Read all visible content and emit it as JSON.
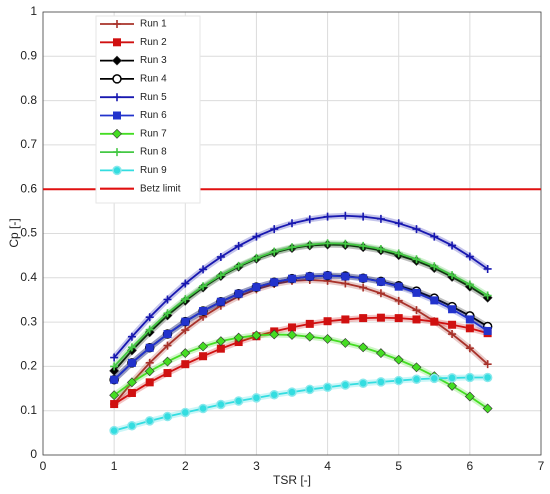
{
  "chart_data": {
    "type": "line",
    "xlabel": "TSR [-]",
    "ylabel": "Cp [-]",
    "xlim": [
      0,
      7
    ],
    "ylim": [
      0,
      1
    ],
    "xticks": [
      0,
      1,
      2,
      3,
      4,
      5,
      6,
      7
    ],
    "yticks": [
      0,
      0.1,
      0.2,
      0.3,
      0.4,
      0.5,
      0.6,
      0.7,
      0.8,
      0.9,
      1
    ],
    "grid": true,
    "legend": "upper left",
    "x": [
      1,
      1.25,
      1.5,
      1.75,
      2,
      2.25,
      2.5,
      2.75,
      3,
      3.25,
      3.5,
      3.75,
      4,
      4.25,
      4.5,
      4.75,
      5,
      5.25,
      5.5,
      5.75,
      6,
      6.25
    ],
    "series": [
      {
        "name": "Run 1",
        "color": "#a8322a",
        "marker": "plus",
        "values": [
          0.115,
          0.164,
          0.208,
          0.247,
          0.282,
          0.312,
          0.337,
          0.358,
          0.374,
          0.386,
          0.393,
          0.395,
          0.393,
          0.387,
          0.378,
          0.365,
          0.348,
          0.327,
          0.302,
          0.273,
          0.241,
          0.205
        ]
      },
      {
        "name": "Run 2",
        "color": "#d01010",
        "marker": "square",
        "values": [
          0.115,
          0.14,
          0.164,
          0.185,
          0.205,
          0.223,
          0.24,
          0.255,
          0.268,
          0.279,
          0.288,
          0.296,
          0.302,
          0.306,
          0.309,
          0.31,
          0.309,
          0.306,
          0.301,
          0.294,
          0.286,
          0.275
        ]
      },
      {
        "name": "Run 3",
        "color": "#000000",
        "marker": "diamond",
        "values": [
          0.19,
          0.236,
          0.277,
          0.315,
          0.348,
          0.378,
          0.404,
          0.425,
          0.443,
          0.457,
          0.467,
          0.473,
          0.475,
          0.474,
          0.469,
          0.462,
          0.451,
          0.438,
          0.422,
          0.402,
          0.38,
          0.355
        ]
      },
      {
        "name": "Run 4",
        "color": "#000000",
        "marker": "circle",
        "values": [
          0.17,
          0.208,
          0.242,
          0.273,
          0.301,
          0.325,
          0.346,
          0.364,
          0.379,
          0.39,
          0.398,
          0.403,
          0.405,
          0.404,
          0.399,
          0.392,
          0.382,
          0.37,
          0.354,
          0.335,
          0.314,
          0.29
        ]
      },
      {
        "name": "Run 5",
        "color": "#1818b0",
        "marker": "plus",
        "values": [
          0.22,
          0.267,
          0.311,
          0.351,
          0.387,
          0.419,
          0.447,
          0.472,
          0.493,
          0.51,
          0.523,
          0.532,
          0.538,
          0.54,
          0.538,
          0.533,
          0.523,
          0.51,
          0.493,
          0.473,
          0.448,
          0.42
        ]
      },
      {
        "name": "Run 6",
        "color": "#2233cc",
        "marker": "square",
        "values": [
          0.17,
          0.208,
          0.242,
          0.273,
          0.301,
          0.325,
          0.346,
          0.364,
          0.379,
          0.39,
          0.398,
          0.403,
          0.405,
          0.403,
          0.399,
          0.391,
          0.38,
          0.366,
          0.349,
          0.329,
          0.306,
          0.28
        ]
      },
      {
        "name": "Run 7",
        "color": "#44dd22",
        "marker": "diamond",
        "values": [
          0.135,
          0.164,
          0.189,
          0.211,
          0.23,
          0.245,
          0.257,
          0.265,
          0.27,
          0.272,
          0.271,
          0.267,
          0.262,
          0.253,
          0.243,
          0.23,
          0.215,
          0.198,
          0.178,
          0.156,
          0.132,
          0.105
        ]
      },
      {
        "name": "Run 8",
        "color": "#44c844",
        "marker": "plus",
        "values": [
          0.2,
          0.243,
          0.283,
          0.32,
          0.352,
          0.381,
          0.406,
          0.427,
          0.445,
          0.459,
          0.469,
          0.475,
          0.478,
          0.477,
          0.472,
          0.465,
          0.455,
          0.442,
          0.426,
          0.406,
          0.385,
          0.36
        ]
      },
      {
        "name": "Run 9",
        "color": "#33dde0",
        "marker": "circle",
        "values": [
          0.055,
          0.066,
          0.077,
          0.087,
          0.096,
          0.105,
          0.114,
          0.122,
          0.129,
          0.136,
          0.142,
          0.148,
          0.153,
          0.158,
          0.162,
          0.165,
          0.168,
          0.171,
          0.173,
          0.174,
          0.175,
          0.175
        ]
      }
    ],
    "hlines": [
      {
        "name": "Betz limit",
        "color": "#e01010",
        "value": 0.6
      }
    ]
  }
}
